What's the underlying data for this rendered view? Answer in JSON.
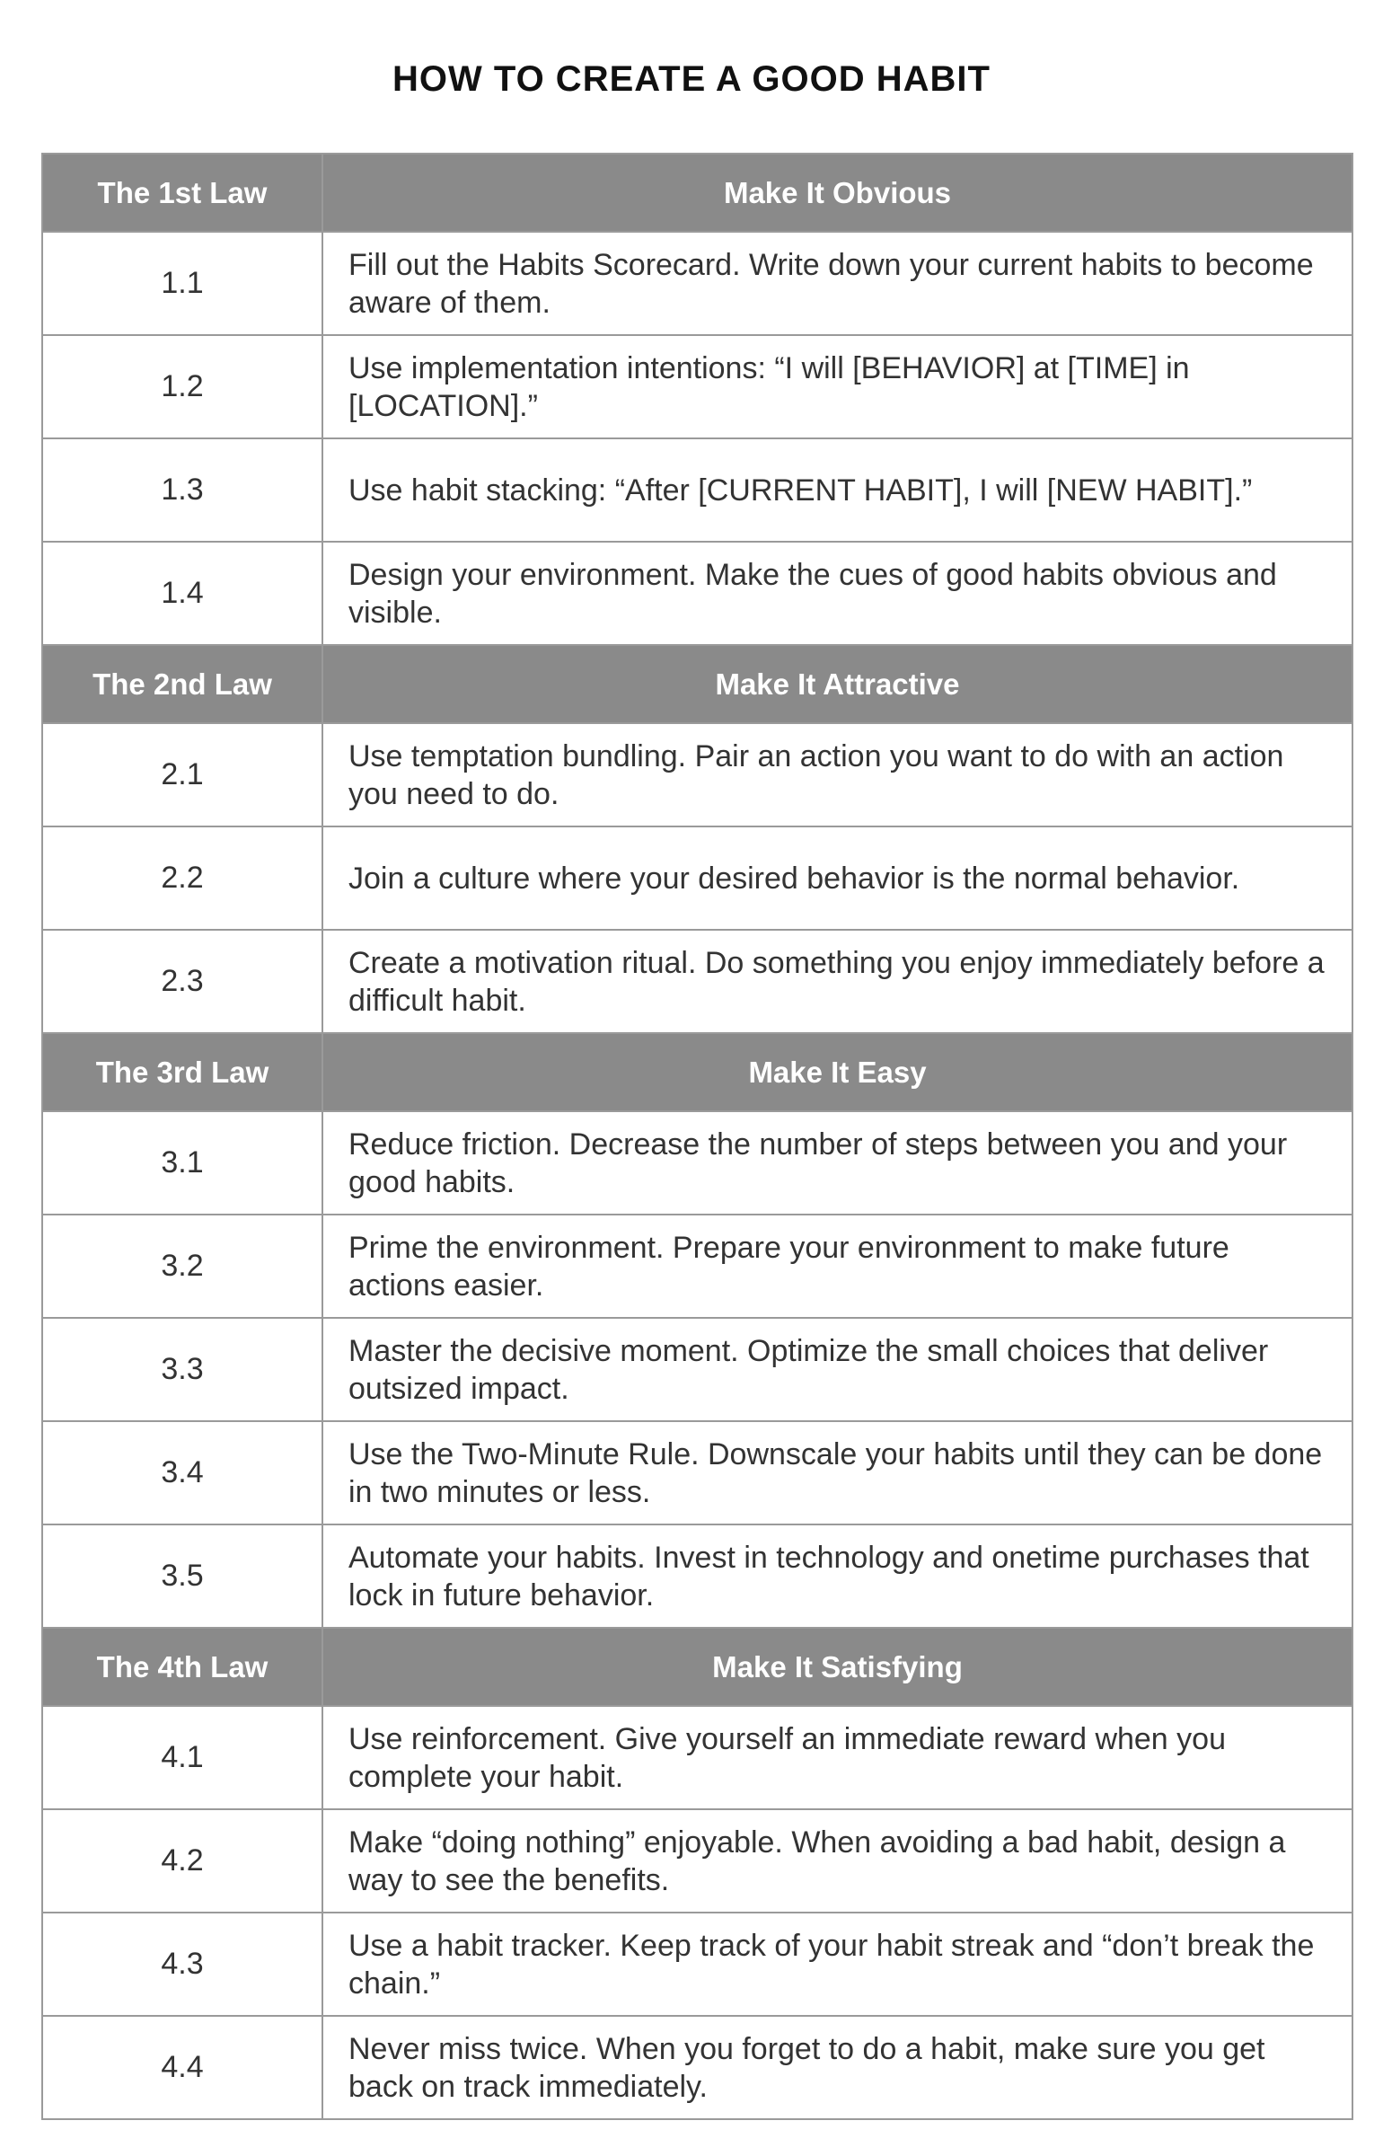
{
  "title": "HOW TO CREATE A GOOD HABIT",
  "laws": [
    {
      "law": "The 1st Law",
      "name": "Make It Obvious",
      "items": [
        {
          "num": "1.1",
          "text": "Fill out the Habits Scorecard. Write down your current habits to become aware of them."
        },
        {
          "num": "1.2",
          "text": "Use implementation intentions: “I will [BEHAVIOR] at [TIME] in [LOCATION].”"
        },
        {
          "num": "1.3",
          "text": "Use habit stacking: “After [CURRENT HABIT], I will [NEW HABIT].”"
        },
        {
          "num": "1.4",
          "text": "Design your environment. Make the cues of good habits obvious and visible."
        }
      ]
    },
    {
      "law": "The 2nd Law",
      "name": "Make It Attractive",
      "items": [
        {
          "num": "2.1",
          "text": "Use temptation bundling. Pair an action you want to do with an action you need to do."
        },
        {
          "num": "2.2",
          "text": "Join a culture where your desired behavior is the normal behavior."
        },
        {
          "num": "2.3",
          "text": "Create a motivation ritual. Do something you enjoy immediately before a difficult habit."
        }
      ]
    },
    {
      "law": "The 3rd Law",
      "name": "Make It Easy",
      "items": [
        {
          "num": "3.1",
          "text": "Reduce friction. Decrease the number of steps between you and your good habits."
        },
        {
          "num": "3.2",
          "text": "Prime the environment. Prepare your environment to make future actions easier."
        },
        {
          "num": "3.3",
          "text": "Master the decisive moment. Optimize the small choices that deliver outsized impact."
        },
        {
          "num": "3.4",
          "text": "Use the Two-Minute Rule. Downscale your habits until they can be done in two minutes or less."
        },
        {
          "num": "3.5",
          "text": "Automate your habits. Invest in technology and onetime purchases that lock in future behavior."
        }
      ]
    },
    {
      "law": "The 4th Law",
      "name": "Make It Satisfying",
      "items": [
        {
          "num": "4.1",
          "text": "Use reinforcement. Give yourself an immediate reward when you complete your habit."
        },
        {
          "num": "4.2",
          "text": "Make “doing nothing” enjoyable. When avoiding a bad habit, design a way to see the benefits."
        },
        {
          "num": "4.3",
          "text": "Use a habit tracker. Keep track of your habit streak and “don’t break the chain.”"
        },
        {
          "num": "4.4",
          "text": "Never miss twice. When you forget to do a habit, make sure you get back on track immediately."
        }
      ]
    }
  ]
}
